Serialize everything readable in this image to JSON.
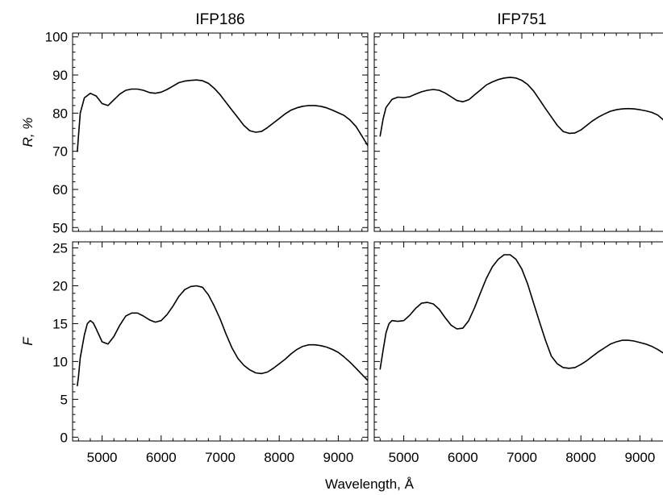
{
  "chart_data": {
    "type": "line",
    "xlabel": "Wavelength, Å",
    "shared_x_range": [
      4500,
      9500
    ],
    "x_ticks": [
      5000,
      6000,
      7000,
      8000,
      9000
    ],
    "rows": [
      {
        "ylabel": "R, %",
        "ylim": [
          49,
          101
        ],
        "y_ticks": [
          50,
          60,
          70,
          80,
          90,
          100
        ]
      },
      {
        "ylabel": "F",
        "ylim": [
          -0.5,
          25.8
        ],
        "y_ticks": [
          0,
          5,
          10,
          15,
          20,
          25
        ]
      }
    ],
    "columns": [
      {
        "title": "IFP186"
      },
      {
        "title": "IFP751"
      }
    ],
    "panels": [
      {
        "column": "IFP186",
        "row": "R, %",
        "x": [
          4580,
          4600,
          4630,
          4700,
          4800,
          4900,
          5000,
          5100,
          5200,
          5300,
          5400,
          5500,
          5600,
          5700,
          5800,
          5900,
          6000,
          6100,
          6200,
          6300,
          6400,
          6500,
          6600,
          6700,
          6800,
          6900,
          7000,
          7100,
          7200,
          7300,
          7400,
          7500,
          7600,
          7700,
          7800,
          7900,
          8000,
          8100,
          8200,
          8300,
          8400,
          8500,
          8600,
          8700,
          8800,
          8900,
          9000,
          9100,
          9200,
          9300,
          9400,
          9500
        ],
        "values": [
          70,
          74,
          80,
          84,
          85.2,
          84.5,
          82.5,
          82,
          83.5,
          85,
          86,
          86.3,
          86.3,
          86,
          85.4,
          85.2,
          85.5,
          86.2,
          87.1,
          88,
          88.4,
          88.6,
          88.7,
          88.5,
          87.8,
          86.5,
          84.8,
          82.8,
          80.8,
          78.8,
          76.8,
          75.4,
          75,
          75.2,
          76.2,
          77.4,
          78.6,
          79.8,
          80.8,
          81.4,
          81.8,
          82,
          82,
          81.8,
          81.4,
          80.8,
          80.1,
          79.4,
          78.2,
          76.5,
          74,
          71.5
        ]
      },
      {
        "column": "IFP751",
        "row": "R, %",
        "x": [
          4600,
          4650,
          4700,
          4800,
          4900,
          5000,
          5100,
          5200,
          5300,
          5400,
          5500,
          5600,
          5700,
          5800,
          5900,
          6000,
          6100,
          6200,
          6300,
          6400,
          6500,
          6600,
          6700,
          6800,
          6900,
          7000,
          7100,
          7200,
          7300,
          7400,
          7500,
          7600,
          7700,
          7800,
          7900,
          8000,
          8100,
          8200,
          8300,
          8400,
          8500,
          8600,
          8700,
          8800,
          8900,
          9000,
          9100,
          9200,
          9300,
          9400,
          9500
        ],
        "values": [
          74,
          78.5,
          81.5,
          83.6,
          84.2,
          84.1,
          84.3,
          85,
          85.6,
          86,
          86.2,
          86,
          85.3,
          84.3,
          83.3,
          83,
          83.5,
          84.8,
          86.1,
          87.4,
          88.2,
          88.8,
          89.2,
          89.4,
          89.2,
          88.6,
          87.5,
          85.8,
          83.5,
          81.2,
          79,
          76.8,
          75.2,
          74.7,
          74.8,
          75.6,
          76.8,
          78,
          79,
          79.8,
          80.5,
          80.9,
          81.1,
          81.2,
          81.1,
          80.9,
          80.6,
          80.2,
          79.5,
          78.2,
          76.5
        ]
      },
      {
        "column": "IFP186",
        "row": "F",
        "x": [
          4580,
          4600,
          4630,
          4700,
          4750,
          4800,
          4850,
          4900,
          5000,
          5100,
          5200,
          5300,
          5400,
          5500,
          5600,
          5700,
          5800,
          5900,
          6000,
          6100,
          6200,
          6300,
          6400,
          6500,
          6600,
          6700,
          6800,
          6900,
          7000,
          7100,
          7200,
          7300,
          7400,
          7500,
          7600,
          7700,
          7800,
          7900,
          8000,
          8100,
          8200,
          8300,
          8400,
          8500,
          8600,
          8700,
          8800,
          8900,
          9000,
          9100,
          9200,
          9300,
          9400,
          9500
        ],
        "values": [
          6.8,
          8,
          10.5,
          13.5,
          15,
          15.4,
          15.1,
          14.3,
          12.6,
          12.3,
          13.3,
          14.8,
          16,
          16.4,
          16.4,
          16,
          15.5,
          15.2,
          15.4,
          16.2,
          17.3,
          18.6,
          19.5,
          19.9,
          20,
          19.8,
          18.8,
          17.3,
          15.6,
          13.6,
          11.8,
          10.4,
          9.5,
          8.9,
          8.5,
          8.4,
          8.6,
          9.1,
          9.7,
          10.3,
          11,
          11.6,
          12,
          12.2,
          12.2,
          12.1,
          11.9,
          11.6,
          11.2,
          10.6,
          9.9,
          9.1,
          8.3,
          7.5
        ]
      },
      {
        "column": "IFP751",
        "row": "F",
        "x": [
          4600,
          4650,
          4700,
          4750,
          4800,
          4900,
          5000,
          5100,
          5200,
          5300,
          5400,
          5500,
          5600,
          5700,
          5800,
          5900,
          6000,
          6100,
          6200,
          6300,
          6400,
          6500,
          6600,
          6700,
          6800,
          6900,
          7000,
          7100,
          7200,
          7300,
          7400,
          7500,
          7600,
          7700,
          7800,
          7900,
          8000,
          8100,
          8200,
          8300,
          8400,
          8500,
          8600,
          8700,
          8800,
          8900,
          9000,
          9100,
          9200,
          9300,
          9400,
          9500
        ],
        "values": [
          9,
          11.5,
          13.8,
          15,
          15.4,
          15.3,
          15.4,
          16.1,
          17,
          17.7,
          17.8,
          17.6,
          16.9,
          15.8,
          14.8,
          14.3,
          14.4,
          15.4,
          17.1,
          19.1,
          21,
          22.5,
          23.5,
          24.1,
          24.1,
          23.5,
          22.2,
          20.2,
          17.7,
          15.2,
          12.8,
          10.7,
          9.7,
          9.2,
          9.1,
          9.2,
          9.6,
          10.1,
          10.7,
          11.3,
          11.8,
          12.3,
          12.6,
          12.8,
          12.8,
          12.7,
          12.5,
          12.3,
          12,
          11.6,
          11.1,
          10.5
        ]
      }
    ]
  }
}
